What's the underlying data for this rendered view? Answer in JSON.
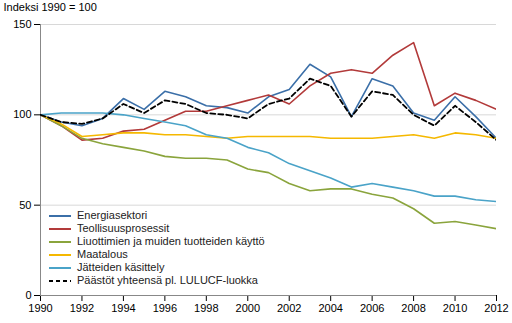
{
  "chart_data": {
    "type": "line",
    "y_label": "Indeksi 1990 = 100",
    "x": [
      1990,
      1991,
      1992,
      1993,
      1994,
      1995,
      1996,
      1997,
      1998,
      1999,
      2000,
      2001,
      2002,
      2003,
      2004,
      2005,
      2006,
      2007,
      2008,
      2009,
      2010,
      2011,
      2012
    ],
    "series": [
      {
        "name": "Energiasektori",
        "color": "#3b6fa8",
        "line_style": "solid",
        "values": [
          100,
          96,
          94,
          98,
          109,
          103,
          113,
          110,
          105,
          104,
          101,
          110,
          114,
          128,
          121,
          99,
          120,
          116,
          101,
          97,
          110,
          99,
          87
        ]
      },
      {
        "name": "Teollisuusprosessit",
        "color": "#b23a3a",
        "line_style": "solid",
        "values": [
          100,
          94,
          86,
          87,
          91,
          92,
          97,
          102,
          102,
          105,
          108,
          111,
          106,
          116,
          123,
          125,
          123,
          133,
          140,
          105,
          112,
          108,
          103
        ]
      },
      {
        "name": "Liuottimien ja muiden tuotteiden käyttö",
        "color": "#8aa43c",
        "line_style": "solid",
        "values": [
          100,
          94,
          87,
          84,
          82,
          80,
          77,
          76,
          76,
          75,
          70,
          68,
          62,
          58,
          59,
          59,
          56,
          54,
          48,
          40,
          41,
          39,
          37
        ]
      },
      {
        "name": "Maatalous",
        "color": "#f5b800",
        "line_style": "solid",
        "values": [
          100,
          95,
          88,
          89,
          90,
          90,
          89,
          89,
          88,
          87,
          88,
          88,
          88,
          88,
          87,
          87,
          87,
          88,
          89,
          87,
          90,
          89,
          87
        ]
      },
      {
        "name": "Jätteiden käsittely",
        "color": "#4aa3c8",
        "line_style": "solid",
        "values": [
          100,
          101,
          101,
          101,
          100,
          98,
          96,
          94,
          89,
          87,
          82,
          79,
          73,
          69,
          65,
          60,
          62,
          60,
          58,
          55,
          55,
          53,
          52
        ]
      },
      {
        "name": "Päästöt yhteensä pl. LULUCF-luokka",
        "color": "#000000",
        "line_style": "dashed",
        "values": [
          100,
          96,
          95,
          98,
          106,
          101,
          108,
          106,
          101,
          100,
          98,
          106,
          109,
          120,
          116,
          99,
          113,
          111,
          100,
          94,
          105,
          96,
          86
        ]
      }
    ],
    "xlim": [
      1990,
      2012
    ],
    "xticks": [
      1990,
      1992,
      1994,
      1996,
      1998,
      2000,
      2002,
      2004,
      2006,
      2008,
      2010,
      2012
    ],
    "ylim": [
      0,
      150
    ],
    "yticks": [
      0,
      50,
      100,
      150
    ],
    "grid": true,
    "legend": "lower left"
  }
}
